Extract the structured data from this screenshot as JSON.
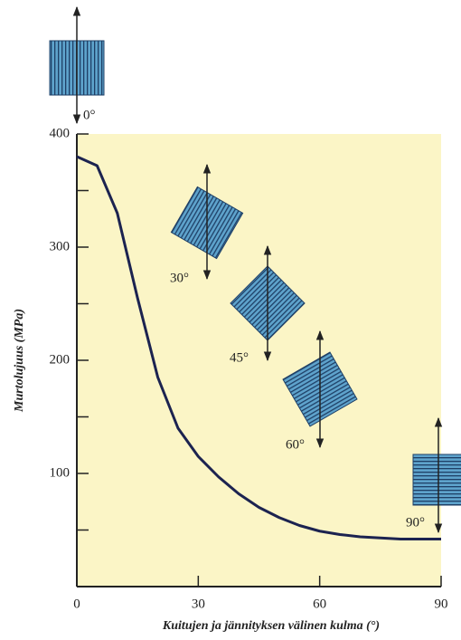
{
  "chart_data": {
    "type": "line",
    "x_label": "Kuitujen ja jännityksen välinen kulma (°)",
    "y_label": "Murtolujuus (MPa)",
    "x": [
      0,
      5,
      10,
      15,
      20,
      25,
      30,
      35,
      40,
      45,
      50,
      55,
      60,
      65,
      70,
      75,
      80,
      85,
      90
    ],
    "values": [
      380,
      372,
      330,
      255,
      185,
      140,
      115,
      97,
      82,
      70,
      61,
      54,
      49,
      46,
      44,
      43,
      42,
      42,
      42
    ],
    "color": "#1c2350",
    "xlim": [
      0,
      90
    ],
    "xticks": [
      0,
      30,
      60,
      90
    ],
    "ylim": [
      0,
      400
    ],
    "yticks": [
      100,
      200,
      300,
      400
    ],
    "background": "#fbf5c6",
    "annotations": [
      "0°",
      "30°",
      "45°",
      "60°",
      "90°"
    ]
  }
}
